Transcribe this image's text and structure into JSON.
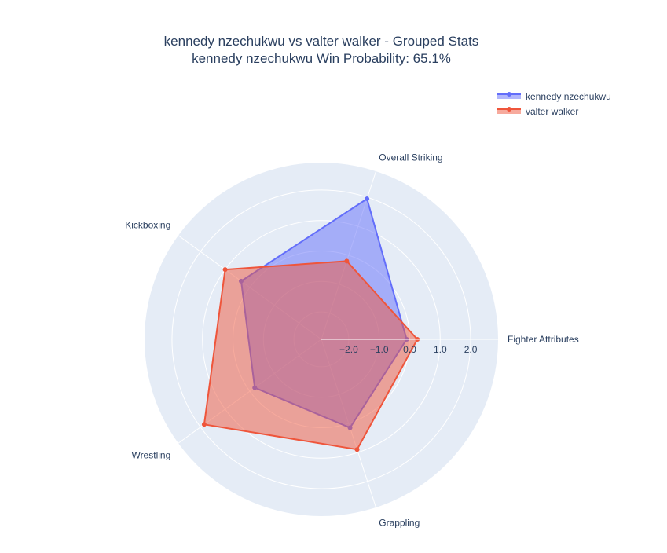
{
  "chart_data": {
    "type": "radar",
    "title": "kennedy nzechukwu vs valter walker - Grouped Stats",
    "subtitle": "kennedy nzechukwu Win Probability: 65.1%",
    "categories": [
      "Fighter Attributes",
      "Overall Striking",
      "Kickboxing",
      "Wrestling",
      "Grappling"
    ],
    "radial_range": [
      -2.9,
      2.9
    ],
    "radial_ticks": [
      -2.0,
      -1.0,
      0.0,
      1.0,
      2.0
    ],
    "radial_tick_labels": [
      "−2.0",
      "−1.0",
      "0.0",
      "1.0",
      "2.0"
    ],
    "legend_position": "top-right",
    "series": [
      {
        "name": "kennedy nzechukwu",
        "color": "#636efa",
        "values": [
          -0.1,
          1.95,
          0.35,
          -0.2,
          0.15
        ]
      },
      {
        "name": "valter walker",
        "color": "#ef553b",
        "values": [
          0.25,
          -0.2,
          1.0,
          1.85,
          0.9
        ]
      }
    ]
  }
}
